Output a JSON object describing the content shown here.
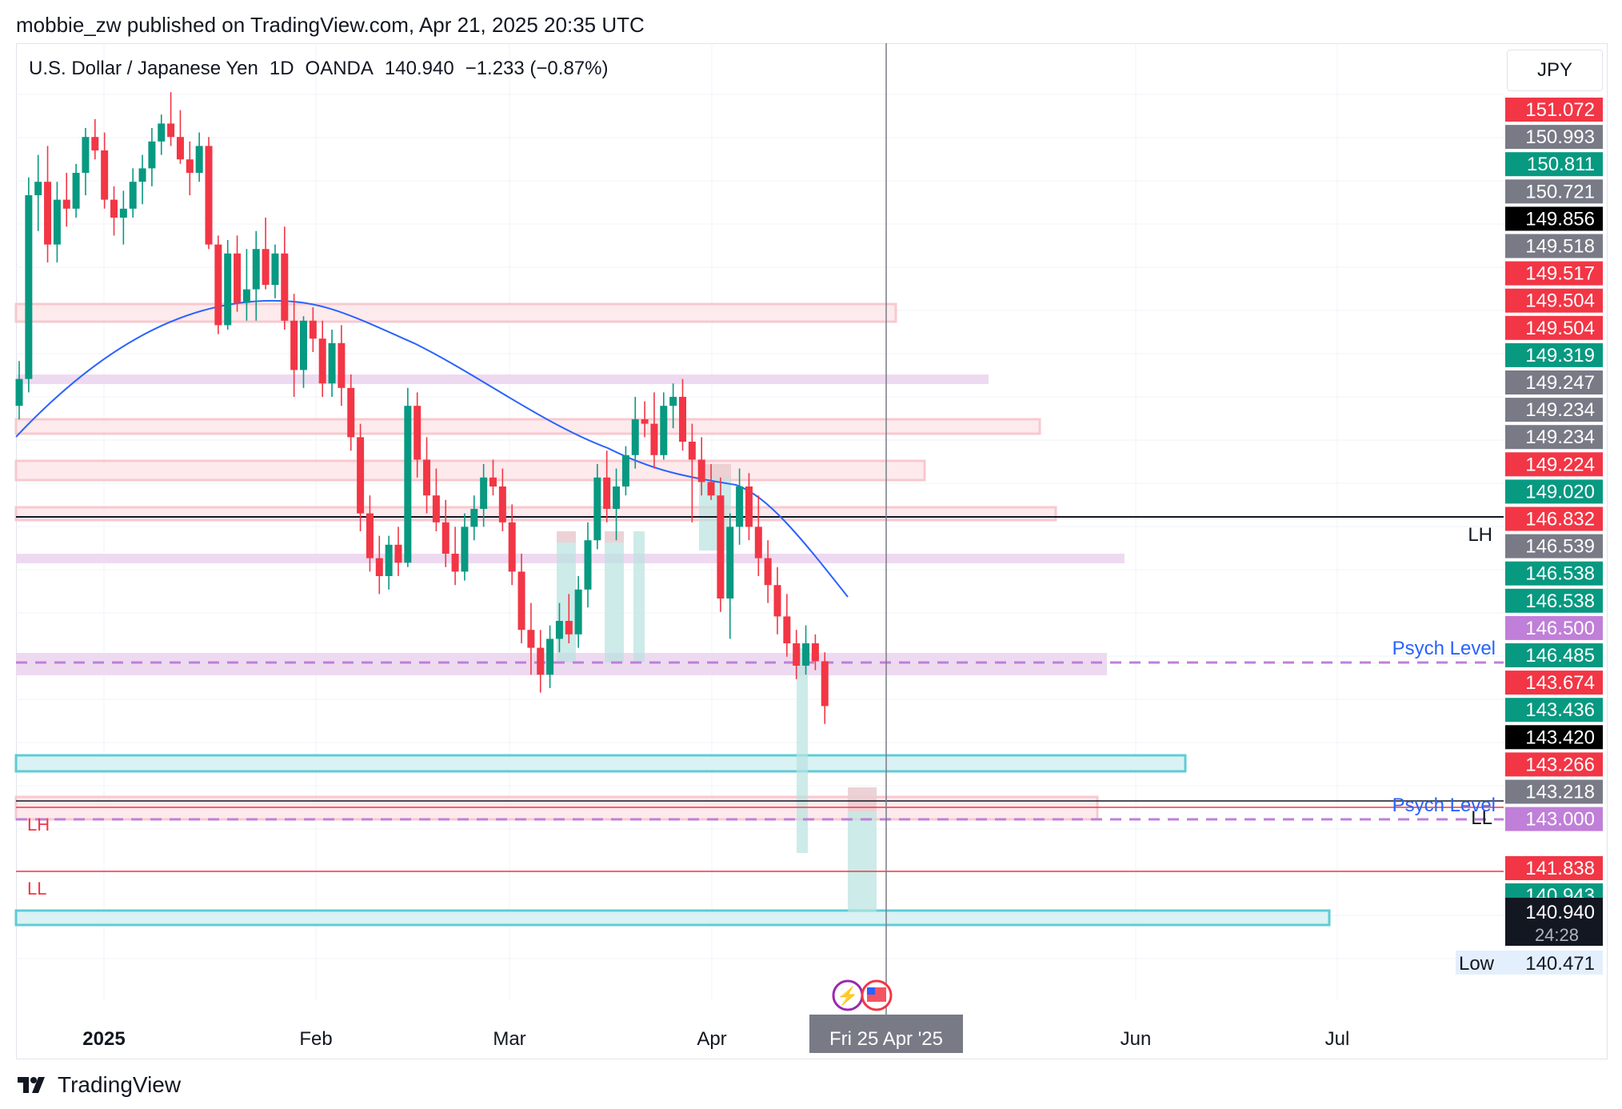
{
  "header": {
    "publisher": "mobbie_zw published on TradingView.com, Apr 21, 2025 20:35 UTC"
  },
  "symbol": {
    "name": "U.S. Dollar / Japanese Yen",
    "interval": "1D",
    "exchange": "OANDA",
    "price": "140.940",
    "change": "−1.233 (−0.87%)",
    "currency": "JPY"
  },
  "brand": {
    "name": "TradingView"
  },
  "colors": {
    "up": "#089981",
    "down": "#f23645",
    "ma": "#2962ff",
    "zone_pink": "#fde8ea",
    "zone_purple": "#ecd6ee",
    "zone_cyan": "#d7f1f3",
    "cyan_border": "#4ec7d2",
    "psych": "#c07fd8",
    "grey_tag": "#787b86",
    "black_tag": "#000000"
  },
  "chart_data": {
    "type": "candlestick",
    "title": "U.S. Dollar / Japanese Yen · 1D · OANDA",
    "x_axis": {
      "labels": [
        "2025",
        "Feb",
        "Mar",
        "Apr",
        "Jun",
        "Jul"
      ],
      "crosshair_label": "Fri 25 Apr '25"
    },
    "y_axis": {
      "range": [
        140.4,
        158.5
      ],
      "price_tags": [
        {
          "value": "151.072",
          "color": "#f23645"
        },
        {
          "value": "150.993",
          "color": "#787b86"
        },
        {
          "value": "150.811",
          "color": "#089981"
        },
        {
          "value": "150.721",
          "color": "#787b86"
        },
        {
          "value": "149.856",
          "color": "#000000"
        },
        {
          "value": "149.518",
          "color": "#787b86"
        },
        {
          "value": "149.517",
          "color": "#f23645"
        },
        {
          "value": "149.504",
          "color": "#f23645"
        },
        {
          "value": "149.504",
          "color": "#f23645"
        },
        {
          "value": "149.319",
          "color": "#089981"
        },
        {
          "value": "149.247",
          "color": "#787b86"
        },
        {
          "value": "149.234",
          "color": "#787b86"
        },
        {
          "value": "149.234",
          "color": "#787b86"
        },
        {
          "value": "149.224",
          "color": "#f23645"
        },
        {
          "value": "149.020",
          "color": "#089981"
        },
        {
          "value": "146.832",
          "color": "#f23645"
        },
        {
          "value": "146.539",
          "color": "#787b86"
        },
        {
          "value": "146.538",
          "color": "#089981"
        },
        {
          "value": "146.538",
          "color": "#089981"
        },
        {
          "value": "146.500",
          "color": "#c07fd8"
        },
        {
          "value": "146.485",
          "color": "#089981"
        },
        {
          "value": "143.674",
          "color": "#f23645"
        },
        {
          "value": "143.436",
          "color": "#089981"
        },
        {
          "value": "143.420",
          "color": "#000000"
        },
        {
          "value": "143.266",
          "color": "#f23645"
        },
        {
          "value": "143.218",
          "color": "#787b86"
        },
        {
          "value": "143.000",
          "color": "#c07fd8"
        },
        {
          "value": "141.838",
          "color": "#f23645"
        },
        {
          "value": "140.943",
          "color": "#089981"
        }
      ],
      "last_price": {
        "value": "140.940",
        "countdown": "24:28"
      },
      "low_tag": {
        "label": "Low",
        "value": "140.471"
      }
    },
    "annotations": {
      "lh_right": "LH",
      "ll_right": "LL",
      "lh_left": "LH",
      "ll_left": "LL",
      "psych1": "Psych Level",
      "psych2": "Psych Level"
    },
    "candles": [
      {
        "o": 147.6,
        "h": 148.6,
        "l": 147.3,
        "c": 148.2
      },
      {
        "o": 148.2,
        "h": 152.7,
        "l": 147.9,
        "c": 152.3
      },
      {
        "o": 152.3,
        "h": 153.2,
        "l": 151.5,
        "c": 152.6
      },
      {
        "o": 152.6,
        "h": 153.4,
        "l": 150.8,
        "c": 151.2
      },
      {
        "o": 151.2,
        "h": 152.6,
        "l": 150.8,
        "c": 152.2
      },
      {
        "o": 152.2,
        "h": 152.8,
        "l": 151.6,
        "c": 152.0
      },
      {
        "o": 152.0,
        "h": 153.0,
        "l": 151.8,
        "c": 152.8
      },
      {
        "o": 152.8,
        "h": 153.8,
        "l": 152.3,
        "c": 153.6
      },
      {
        "o": 153.6,
        "h": 154.0,
        "l": 153.1,
        "c": 153.3
      },
      {
        "o": 153.3,
        "h": 153.7,
        "l": 152.0,
        "c": 152.2
      },
      {
        "o": 152.2,
        "h": 152.5,
        "l": 151.4,
        "c": 151.8
      },
      {
        "o": 151.8,
        "h": 152.4,
        "l": 151.2,
        "c": 152.0
      },
      {
        "o": 152.0,
        "h": 152.9,
        "l": 151.8,
        "c": 152.6
      },
      {
        "o": 152.6,
        "h": 153.2,
        "l": 152.1,
        "c": 152.9
      },
      {
        "o": 152.9,
        "h": 153.8,
        "l": 152.5,
        "c": 153.5
      },
      {
        "o": 153.5,
        "h": 154.1,
        "l": 153.2,
        "c": 153.9
      },
      {
        "o": 153.9,
        "h": 154.6,
        "l": 153.4,
        "c": 153.6
      },
      {
        "o": 153.6,
        "h": 154.2,
        "l": 153.0,
        "c": 153.1
      },
      {
        "o": 153.1,
        "h": 153.5,
        "l": 152.3,
        "c": 152.8
      },
      {
        "o": 152.8,
        "h": 153.7,
        "l": 152.6,
        "c": 153.4
      },
      {
        "o": 153.4,
        "h": 153.6,
        "l": 151.1,
        "c": 151.2
      },
      {
        "o": 151.2,
        "h": 151.4,
        "l": 149.2,
        "c": 149.4
      },
      {
        "o": 149.4,
        "h": 151.3,
        "l": 149.3,
        "c": 151.0
      },
      {
        "o": 151.0,
        "h": 151.4,
        "l": 149.7,
        "c": 149.9
      },
      {
        "o": 149.9,
        "h": 151.1,
        "l": 149.5,
        "c": 150.2
      },
      {
        "o": 150.2,
        "h": 151.5,
        "l": 149.5,
        "c": 151.1
      },
      {
        "o": 151.1,
        "h": 151.8,
        "l": 150.2,
        "c": 150.3
      },
      {
        "o": 150.3,
        "h": 151.2,
        "l": 150.0,
        "c": 151.0
      },
      {
        "o": 151.0,
        "h": 151.6,
        "l": 149.3,
        "c": 149.5
      },
      {
        "o": 149.5,
        "h": 150.1,
        "l": 147.8,
        "c": 148.4
      },
      {
        "o": 148.4,
        "h": 149.6,
        "l": 148.0,
        "c": 149.5
      },
      {
        "o": 149.5,
        "h": 149.8,
        "l": 148.8,
        "c": 149.1
      },
      {
        "o": 149.1,
        "h": 149.5,
        "l": 147.8,
        "c": 148.1
      },
      {
        "o": 148.1,
        "h": 149.3,
        "l": 147.8,
        "c": 149.0
      },
      {
        "o": 149.0,
        "h": 149.4,
        "l": 147.6,
        "c": 148.0
      },
      {
        "o": 148.0,
        "h": 148.3,
        "l": 146.6,
        "c": 146.9
      },
      {
        "o": 146.9,
        "h": 147.2,
        "l": 144.8,
        "c": 145.2
      },
      {
        "o": 145.2,
        "h": 145.6,
        "l": 143.9,
        "c": 144.2
      },
      {
        "o": 144.2,
        "h": 144.7,
        "l": 143.4,
        "c": 143.8
      },
      {
        "o": 143.8,
        "h": 144.7,
        "l": 143.5,
        "c": 144.5
      },
      {
        "o": 144.5,
        "h": 144.9,
        "l": 143.8,
        "c": 144.1
      },
      {
        "o": 144.1,
        "h": 148.0,
        "l": 144.0,
        "c": 147.6
      },
      {
        "o": 147.6,
        "h": 147.9,
        "l": 146.0,
        "c": 146.4
      },
      {
        "o": 146.4,
        "h": 146.9,
        "l": 145.2,
        "c": 145.6
      },
      {
        "o": 145.6,
        "h": 146.2,
        "l": 144.8,
        "c": 145.0
      },
      {
        "o": 145.0,
        "h": 145.5,
        "l": 144.0,
        "c": 144.3
      },
      {
        "o": 144.3,
        "h": 144.9,
        "l": 143.6,
        "c": 143.9
      },
      {
        "o": 143.9,
        "h": 145.2,
        "l": 143.7,
        "c": 144.9
      },
      {
        "o": 144.9,
        "h": 145.6,
        "l": 144.6,
        "c": 145.3
      },
      {
        "o": 145.3,
        "h": 146.3,
        "l": 144.9,
        "c": 146.0
      },
      {
        "o": 146.0,
        "h": 146.4,
        "l": 145.6,
        "c": 145.8
      },
      {
        "o": 145.8,
        "h": 146.2,
        "l": 144.8,
        "c": 145.0
      },
      {
        "o": 145.0,
        "h": 145.4,
        "l": 143.6,
        "c": 143.9
      },
      {
        "o": 143.9,
        "h": 144.3,
        "l": 142.3,
        "c": 142.6
      },
      {
        "o": 142.6,
        "h": 143.2,
        "l": 141.6,
        "c": 142.2
      },
      {
        "o": 142.2,
        "h": 142.6,
        "l": 141.2,
        "c": 141.6
      },
      {
        "o": 141.6,
        "h": 142.7,
        "l": 141.3,
        "c": 142.4
      },
      {
        "o": 142.4,
        "h": 143.2,
        "l": 142.1,
        "c": 142.8
      },
      {
        "o": 142.8,
        "h": 143.4,
        "l": 142.3,
        "c": 142.5
      },
      {
        "o": 142.5,
        "h": 143.8,
        "l": 142.2,
        "c": 143.5
      },
      {
        "o": 143.5,
        "h": 145.0,
        "l": 143.1,
        "c": 144.6
      },
      {
        "o": 144.6,
        "h": 146.3,
        "l": 144.4,
        "c": 146.0
      },
      {
        "o": 146.0,
        "h": 146.6,
        "l": 145.0,
        "c": 145.3
      },
      {
        "o": 145.3,
        "h": 146.2,
        "l": 144.6,
        "c": 145.8
      },
      {
        "o": 145.8,
        "h": 146.7,
        "l": 145.6,
        "c": 146.5
      },
      {
        "o": 146.5,
        "h": 147.8,
        "l": 146.2,
        "c": 147.3
      },
      {
        "o": 147.3,
        "h": 147.7,
        "l": 146.9,
        "c": 147.2
      },
      {
        "o": 147.2,
        "h": 147.9,
        "l": 146.2,
        "c": 146.5
      },
      {
        "o": 146.5,
        "h": 147.9,
        "l": 146.4,
        "c": 147.6
      },
      {
        "o": 147.6,
        "h": 148.1,
        "l": 147.1,
        "c": 147.8
      },
      {
        "o": 147.8,
        "h": 148.2,
        "l": 146.6,
        "c": 146.8
      },
      {
        "o": 146.8,
        "h": 147.2,
        "l": 145.0,
        "c": 146.4
      },
      {
        "o": 146.4,
        "h": 146.9,
        "l": 145.6,
        "c": 145.9
      },
      {
        "o": 145.9,
        "h": 146.3,
        "l": 145.5,
        "c": 145.6
      },
      {
        "o": 145.6,
        "h": 146.0,
        "l": 143.0,
        "c": 143.3
      },
      {
        "o": 143.3,
        "h": 145.2,
        "l": 142.4,
        "c": 144.9
      },
      {
        "o": 144.9,
        "h": 146.2,
        "l": 144.5,
        "c": 145.8
      },
      {
        "o": 145.8,
        "h": 146.1,
        "l": 144.6,
        "c": 144.9
      },
      {
        "o": 144.9,
        "h": 145.6,
        "l": 143.8,
        "c": 144.2
      },
      {
        "o": 144.2,
        "h": 144.6,
        "l": 143.2,
        "c": 143.6
      },
      {
        "o": 143.6,
        "h": 144.0,
        "l": 142.5,
        "c": 142.9
      },
      {
        "o": 142.9,
        "h": 143.4,
        "l": 142.0,
        "c": 142.3
      },
      {
        "o": 142.3,
        "h": 142.6,
        "l": 141.5,
        "c": 141.8
      },
      {
        "o": 141.8,
        "h": 142.7,
        "l": 141.6,
        "c": 142.3
      },
      {
        "o": 142.3,
        "h": 142.5,
        "l": 141.7,
        "c": 141.9
      },
      {
        "o": 141.9,
        "h": 142.1,
        "l": 140.5,
        "c": 140.9
      }
    ],
    "moving_average": [
      148.5,
      149.0,
      149.5,
      150.0,
      150.4,
      150.7,
      151.0,
      151.2,
      151.4,
      151.5,
      151.55,
      151.6,
      151.65,
      151.55,
      151.4,
      151.15,
      150.9,
      150.6,
      150.3,
      149.9,
      149.6,
      149.3,
      149.1,
      148.9,
      148.75,
      148.6,
      148.45,
      148.3,
      148.15,
      148.0,
      147.8,
      147.6,
      147.4,
      147.25,
      147.1,
      146.95,
      146.8,
      146.65,
      146.45,
      146.1,
      145.8
    ]
  }
}
